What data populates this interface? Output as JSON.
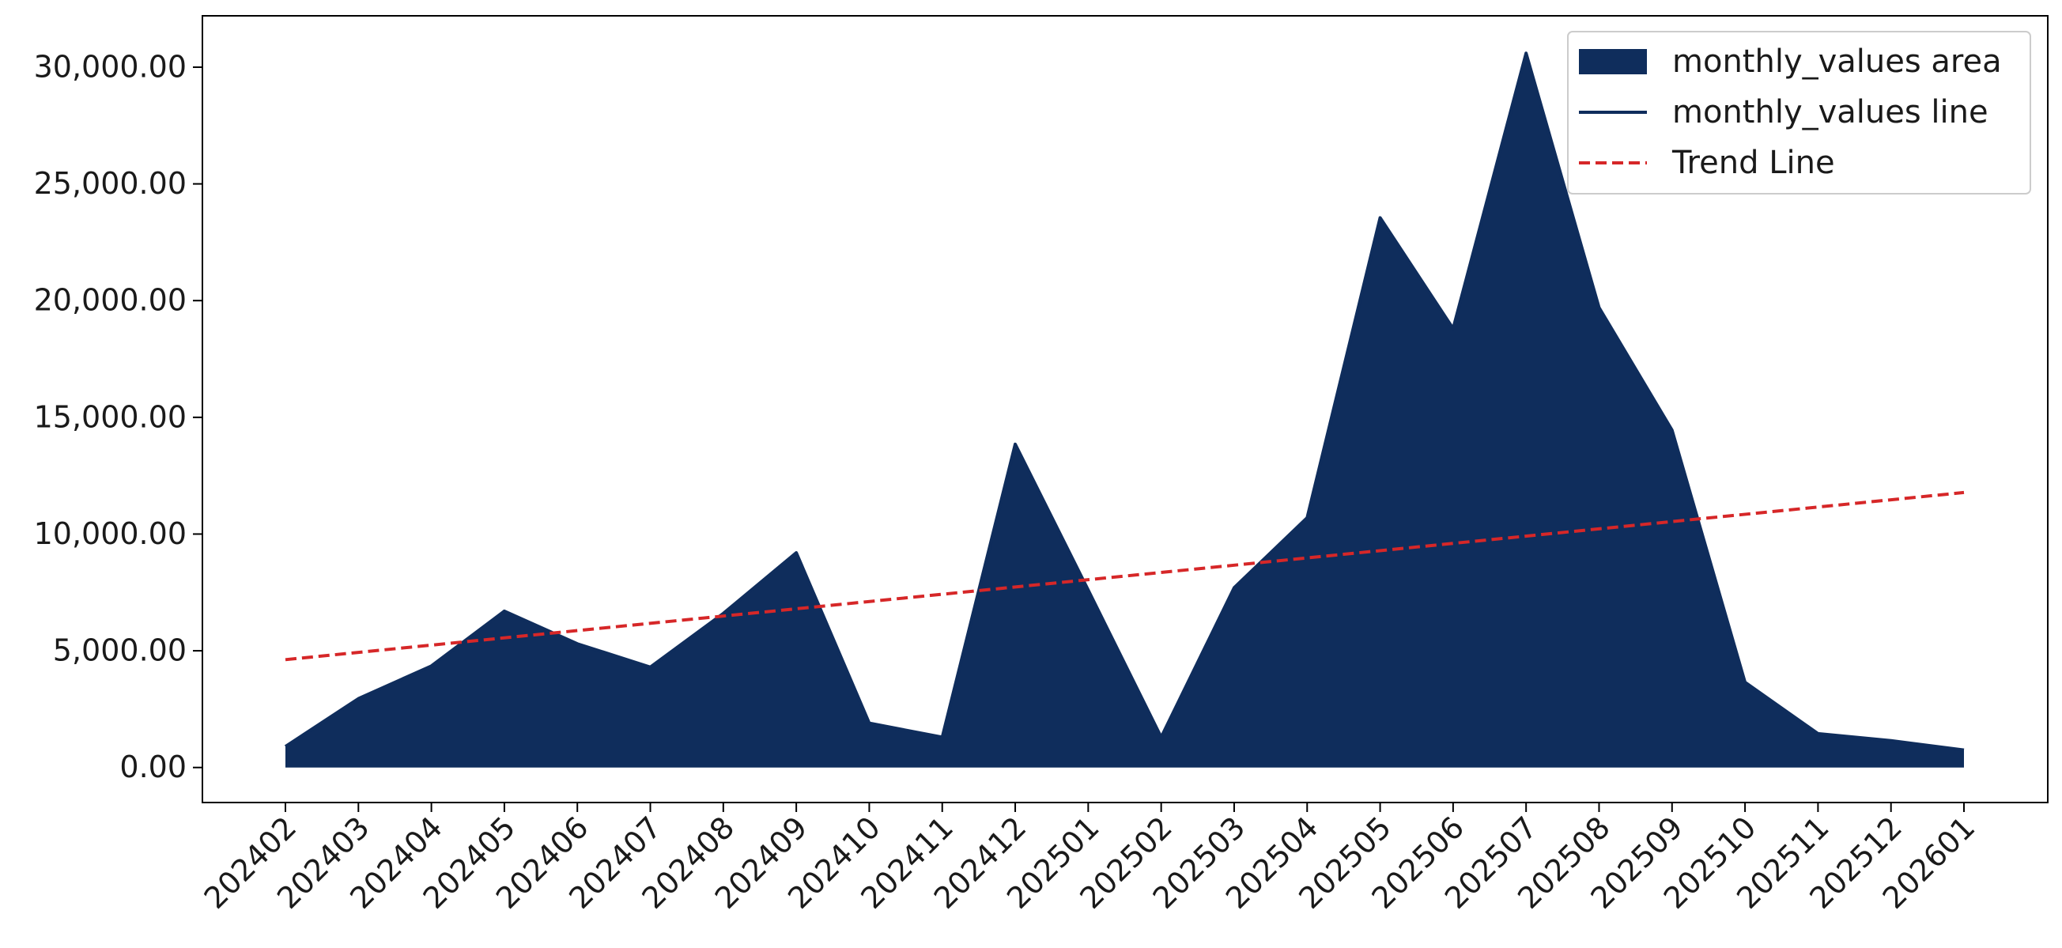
{
  "chart_data": {
    "type": "area",
    "title": "",
    "xlabel": "",
    "ylabel": "",
    "categories": [
      "202402",
      "202403",
      "202404",
      "202405",
      "202406",
      "202407",
      "202408",
      "202409",
      "202410",
      "202411",
      "202412",
      "202501",
      "202502",
      "202503",
      "202504",
      "202505",
      "202506",
      "202507",
      "202508",
      "202509",
      "202510",
      "202511",
      "202512",
      "202601"
    ],
    "series": [
      {
        "name": "monthly_values area",
        "kind": "area",
        "color": "#0f2d5c",
        "values": [
          900,
          2950,
          4350,
          6700,
          5300,
          4300,
          6600,
          9200,
          1900,
          1300,
          13850,
          7600,
          1300,
          7700,
          10700,
          23550,
          18800,
          30600,
          19700,
          14450,
          3650,
          1450,
          1150,
          750
        ]
      },
      {
        "name": "monthly_values line",
        "kind": "line",
        "color": "#0f2d5c"
      },
      {
        "name": "Trend Line",
        "kind": "trend",
        "color": "#d62728",
        "start": 4620,
        "end": 11780
      }
    ],
    "ylim": [
      -1500,
      32200
    ],
    "yticks": [
      0,
      5000,
      10000,
      15000,
      20000,
      25000,
      30000
    ],
    "ytick_labels": [
      "0.00",
      "5,000.00",
      "10,000.00",
      "15,000.00",
      "20,000.00",
      "25,000.00",
      "30,000.00"
    ],
    "grid": false,
    "legend": "top-right",
    "legend_labels": [
      "monthly_values area",
      "monthly_values line",
      "Trend Line"
    ]
  }
}
